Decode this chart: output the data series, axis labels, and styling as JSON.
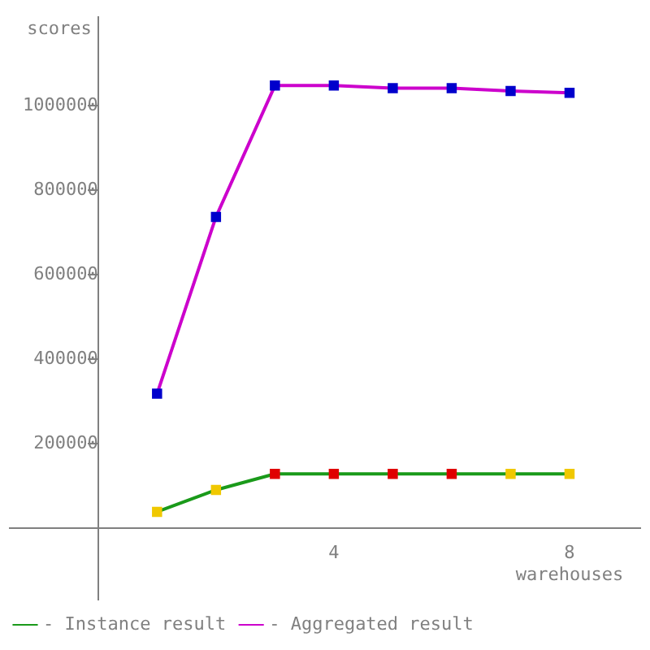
{
  "chart_data": {
    "type": "line",
    "xlabel": "warehouses",
    "ylabel": "scores",
    "x": [
      1,
      2,
      3,
      4,
      5,
      6,
      7,
      8
    ],
    "series": [
      {
        "name": "- Instance result",
        "color": "#1a9a1a",
        "colors": [
          "#f0c800",
          "#f0c800",
          "#e00000",
          "#e00000",
          "#e00000",
          "#e00000",
          "#f0c800",
          "#f0c800"
        ],
        "values": [
          38000,
          90000,
          128000,
          128000,
          128000,
          128000,
          128000,
          128000
        ]
      },
      {
        "name": "- Aggregated result",
        "color": "#cc00cc",
        "colors": [
          "#0000cc",
          "#0000cc",
          "#0000cc",
          "#0000cc",
          "#0000cc",
          "#0000cc",
          "#0000cc",
          "#0000cc"
        ],
        "values": [
          318000,
          737000,
          1048000,
          1048000,
          1042000,
          1042000,
          1035000,
          1031000
        ]
      }
    ],
    "xlim": [
      -1.5,
      9.2
    ],
    "xticks": [
      4,
      8
    ],
    "ylim": [
      -170000,
      1210000
    ],
    "yticks": [
      200000,
      400000,
      600000,
      800000,
      1000000
    ],
    "grid": false,
    "legend": "bottom left",
    "marker": "square",
    "line_style": "solid"
  }
}
